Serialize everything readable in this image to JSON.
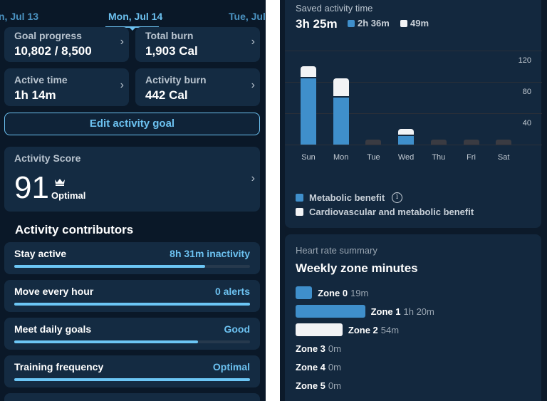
{
  "left": {
    "dates": {
      "prev": "n, Jul 13",
      "current": "Mon, Jul 14",
      "next": "Tue, Jul"
    },
    "tiles": [
      {
        "label": "Goal progress",
        "value": "10,802 / 8,500"
      },
      {
        "label": "Total burn",
        "value": "1,903 Cal"
      },
      {
        "label": "Active time",
        "value": "1h 14m"
      },
      {
        "label": "Activity burn",
        "value": "442 Cal"
      }
    ],
    "edit_goal_label": "Edit activity goal",
    "score": {
      "title": "Activity Score",
      "value": "91",
      "status": "Optimal",
      "icon": "crown-icon"
    },
    "contributors_title": "Activity contributors",
    "contributors": [
      {
        "name": "Stay active",
        "stat": "8h 31m inactivity",
        "progress": 0.81
      },
      {
        "name": "Move every hour",
        "stat": "0 alerts",
        "progress": 1.0
      },
      {
        "name": "Meet daily goals",
        "stat": "Good",
        "progress": 0.78
      },
      {
        "name": "Training frequency",
        "stat": "Optimal",
        "progress": 1.0
      }
    ]
  },
  "right": {
    "saved": {
      "title": "Saved activity time",
      "total": "3h 25m",
      "metabolic_total": "2h 36m",
      "cardio_total": "49m"
    },
    "chart_data": {
      "type": "bar",
      "stacked": true,
      "categories": [
        "Sun",
        "Mon",
        "Tue",
        "Wed",
        "Thu",
        "Fri",
        "Sat"
      ],
      "series": [
        {
          "name": "Metabolic benefit",
          "color": "#3f8fcb",
          "values": [
            85,
            60,
            0,
            11,
            0,
            0,
            0
          ]
        },
        {
          "name": "Cardiovascular and metabolic benefit",
          "color": "#f2f3f5",
          "values": [
            15,
            25,
            0,
            9,
            0,
            0,
            0
          ]
        }
      ],
      "yticks": [
        "120",
        "80",
        "40"
      ],
      "ylim": [
        0,
        120
      ],
      "grid": true,
      "legend": "bottom"
    },
    "heart": {
      "subtitle": "Heart rate summary",
      "title": "Weekly zone minutes",
      "zones": [
        {
          "name": "Zone 0",
          "time": "19m",
          "minutes": 19,
          "color": "#3f8fcb"
        },
        {
          "name": "Zone 1",
          "time": "1h 20m",
          "minutes": 80,
          "color": "#3f8fcb"
        },
        {
          "name": "Zone 2",
          "time": "54m",
          "minutes": 54,
          "color": "#f2f3f5"
        },
        {
          "name": "Zone 3",
          "time": "0m",
          "minutes": 0,
          "color": "#f2f3f5"
        },
        {
          "name": "Zone 4",
          "time": "0m",
          "minutes": 0,
          "color": "#f2f3f5"
        },
        {
          "name": "Zone 5",
          "time": "0m",
          "minutes": 0,
          "color": "#f2f3f5"
        }
      ]
    }
  }
}
